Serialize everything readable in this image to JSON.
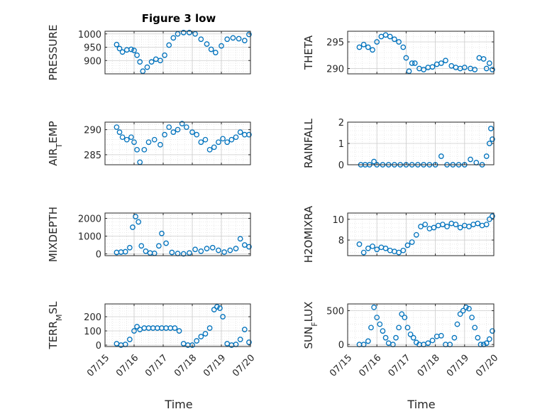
{
  "title": "Figure 3 low",
  "x_label": "Time",
  "x_ticks": [
    "07/15",
    "07/16",
    "07/17",
    "07/18",
    "07/19",
    "07/20"
  ],
  "marker_color": "#0072BD",
  "chart_data": [
    {
      "type": "scatter",
      "ylabel": "PRESSURE",
      "ylabel_sub": null,
      "xlim": [
        0,
        5
      ],
      "ylim": [
        850,
        1010
      ],
      "yticks": [
        900,
        950,
        1000
      ],
      "ytick_labels": [
        "900",
        "950",
        "1000"
      ],
      "x": [
        0.4,
        0.5,
        0.6,
        0.75,
        0.9,
        1.0,
        1.1,
        1.2,
        1.3,
        1.45,
        1.6,
        1.75,
        1.9,
        2.05,
        2.2,
        2.35,
        2.5,
        2.7,
        2.9,
        3.1,
        3.3,
        3.5,
        3.65,
        3.8,
        4.0,
        4.2,
        4.4,
        4.6,
        4.8,
        4.95
      ],
      "y": [
        960,
        945,
        932,
        940,
        942,
        938,
        920,
        895,
        860,
        875,
        895,
        905,
        900,
        920,
        958,
        985,
        1000,
        1005,
        1005,
        1000,
        980,
        962,
        942,
        930,
        955,
        980,
        985,
        982,
        975,
        998
      ]
    },
    {
      "type": "scatter",
      "ylabel": "THETA",
      "ylabel_sub": null,
      "xlim": [
        0,
        5
      ],
      "ylim": [
        289,
        297
      ],
      "yticks": [
        290,
        295
      ],
      "ytick_labels": [
        "290",
        "295"
      ],
      "x": [
        0.4,
        0.55,
        0.7,
        0.85,
        1.0,
        1.15,
        1.3,
        1.45,
        1.6,
        1.75,
        1.9,
        2.0,
        2.1,
        2.2,
        2.3,
        2.45,
        2.6,
        2.75,
        2.9,
        3.05,
        3.2,
        3.35,
        3.55,
        3.7,
        3.85,
        4.0,
        4.2,
        4.35,
        4.5,
        4.65,
        4.75,
        4.85,
        4.95
      ],
      "y": [
        294,
        294.5,
        294,
        293.5,
        295,
        296,
        296.3,
        296,
        295.5,
        295,
        294,
        292,
        289.5,
        291,
        291,
        290,
        289.8,
        290.2,
        290.3,
        290.8,
        291,
        291.5,
        290.5,
        290.2,
        290,
        290.2,
        290,
        289.8,
        292,
        291.8,
        290,
        291,
        289.8
      ]
    },
    {
      "type": "scatter",
      "ylabel": "AIR",
      "ylabel_sub": "T",
      "ylabel_rest": "EMP",
      "xlim": [
        0,
        5
      ],
      "ylim": [
        283,
        291.5
      ],
      "yticks": [
        285,
        290
      ],
      "ytick_labels": [
        "285",
        "290"
      ],
      "x": [
        0.4,
        0.5,
        0.6,
        0.75,
        0.9,
        1.0,
        1.1,
        1.2,
        1.35,
        1.5,
        1.7,
        1.9,
        2.05,
        2.2,
        2.35,
        2.5,
        2.65,
        2.8,
        3.0,
        3.15,
        3.3,
        3.45,
        3.6,
        3.75,
        3.9,
        4.05,
        4.2,
        4.35,
        4.5,
        4.65,
        4.8,
        4.95
      ],
      "y": [
        290.5,
        289.5,
        288.5,
        288,
        288.5,
        287.5,
        286,
        283.5,
        286,
        287.5,
        288,
        287,
        289,
        290.5,
        289.5,
        290,
        291.2,
        290.5,
        289.5,
        289,
        287.5,
        288,
        286,
        286.5,
        287.5,
        288.2,
        287.5,
        288,
        288.5,
        289.5,
        289,
        289
      ]
    },
    {
      "type": "scatter",
      "ylabel": "RAINFALL",
      "ylabel_sub": null,
      "xlim": [
        0,
        5
      ],
      "ylim": [
        0,
        2
      ],
      "yticks": [
        0,
        1,
        2
      ],
      "ytick_labels": [
        "0",
        "1",
        "2"
      ],
      "x": [
        0.45,
        0.6,
        0.75,
        0.9,
        1.0,
        1.2,
        1.4,
        1.6,
        1.8,
        2.0,
        2.2,
        2.4,
        2.6,
        2.8,
        3.0,
        3.2,
        3.4,
        3.6,
        3.8,
        4.0,
        4.2,
        4.4,
        4.6,
        4.75,
        4.85,
        4.9,
        4.95
      ],
      "y": [
        0,
        0,
        0,
        0.15,
        0,
        0,
        0,
        0,
        0,
        0,
        0,
        0,
        0,
        0,
        0,
        0.4,
        0,
        0,
        0,
        0,
        0.25,
        0.1,
        0,
        0.4,
        1.0,
        1.7,
        1.2
      ]
    },
    {
      "type": "scatter",
      "ylabel": "MIXDEPTH",
      "ylabel_sub": null,
      "xlim": [
        0,
        5
      ],
      "ylim": [
        -100,
        2300
      ],
      "yticks": [
        0,
        1000,
        2000
      ],
      "ytick_labels": [
        "0",
        "1000",
        "2000"
      ],
      "x": [
        0.4,
        0.55,
        0.7,
        0.85,
        0.95,
        1.05,
        1.15,
        1.25,
        1.4,
        1.55,
        1.7,
        1.85,
        1.95,
        2.1,
        2.3,
        2.5,
        2.7,
        2.9,
        3.1,
        3.3,
        3.5,
        3.7,
        3.9,
        4.1,
        4.3,
        4.5,
        4.65,
        4.8,
        4.95
      ],
      "y": [
        80,
        100,
        120,
        350,
        1500,
        2100,
        1800,
        450,
        150,
        50,
        30,
        450,
        1150,
        600,
        80,
        20,
        0,
        50,
        250,
        150,
        300,
        350,
        200,
        100,
        200,
        300,
        850,
        500,
        400
      ]
    },
    {
      "type": "scatter",
      "ylabel": "H2OMIXRA",
      "ylabel_sub": null,
      "xlim": [
        0,
        5
      ],
      "ylim": [
        6.5,
        10.6
      ],
      "yticks": [
        8,
        10
      ],
      "ytick_labels": [
        "8",
        "10"
      ],
      "x": [
        0.4,
        0.55,
        0.7,
        0.85,
        1.0,
        1.15,
        1.3,
        1.45,
        1.6,
        1.75,
        1.9,
        2.05,
        2.2,
        2.35,
        2.5,
        2.65,
        2.8,
        2.95,
        3.1,
        3.25,
        3.4,
        3.55,
        3.7,
        3.85,
        4.0,
        4.15,
        4.3,
        4.45,
        4.6,
        4.75,
        4.85,
        4.95
      ],
      "y": [
        7.6,
        6.8,
        7.2,
        7.4,
        7.1,
        7.3,
        7.2,
        7.0,
        6.9,
        6.8,
        7.0,
        7.5,
        7.8,
        8.5,
        9.3,
        9.5,
        9.1,
        9.2,
        9.4,
        9.5,
        9.3,
        9.6,
        9.5,
        9.2,
        9.4,
        9.3,
        9.5,
        9.6,
        9.4,
        9.5,
        10.0,
        10.3
      ]
    },
    {
      "type": "scatter",
      "ylabel": "TERR",
      "ylabel_sub": "M",
      "ylabel_rest": "SL",
      "xlim": [
        0,
        5
      ],
      "ylim": [
        -10,
        290
      ],
      "yticks": [
        0,
        100,
        200
      ],
      "ytick_labels": [
        "0",
        "100",
        "200"
      ],
      "x": [
        0.4,
        0.55,
        0.7,
        0.85,
        1.0,
        1.1,
        1.2,
        1.35,
        1.5,
        1.65,
        1.8,
        1.95,
        2.1,
        2.25,
        2.4,
        2.55,
        2.7,
        2.85,
        3.0,
        3.15,
        3.3,
        3.45,
        3.6,
        3.75,
        3.85,
        3.95,
        4.05,
        4.2,
        4.35,
        4.5,
        4.65,
        4.8,
        4.95
      ],
      "y": [
        10,
        0,
        5,
        40,
        100,
        130,
        110,
        120,
        120,
        120,
        120,
        120,
        120,
        120,
        120,
        100,
        10,
        0,
        0,
        30,
        60,
        80,
        120,
        250,
        270,
        260,
        200,
        10,
        0,
        5,
        40,
        110,
        20
      ]
    },
    {
      "type": "scatter",
      "ylabel": "SUN",
      "ylabel_sub": "F",
      "ylabel_rest": "LUX",
      "xlim": [
        0,
        5
      ],
      "ylim": [
        -30,
        600
      ],
      "yticks": [
        0,
        500
      ],
      "ytick_labels": [
        "0",
        "500"
      ],
      "x": [
        0.4,
        0.55,
        0.7,
        0.8,
        0.9,
        1.0,
        1.1,
        1.2,
        1.3,
        1.4,
        1.55,
        1.65,
        1.75,
        1.85,
        1.95,
        2.05,
        2.15,
        2.25,
        2.35,
        2.45,
        2.6,
        2.75,
        2.9,
        3.05,
        3.2,
        3.35,
        3.5,
        3.65,
        3.75,
        3.85,
        3.95,
        4.05,
        4.15,
        4.25,
        4.35,
        4.45,
        4.55,
        4.65,
        4.75,
        4.85,
        4.95
      ],
      "y": [
        0,
        0,
        50,
        250,
        550,
        400,
        300,
        200,
        100,
        20,
        0,
        100,
        250,
        450,
        400,
        250,
        150,
        100,
        30,
        0,
        0,
        20,
        60,
        120,
        130,
        0,
        0,
        100,
        300,
        450,
        500,
        550,
        530,
        400,
        250,
        100,
        0,
        0,
        20,
        80,
        200
      ]
    }
  ]
}
